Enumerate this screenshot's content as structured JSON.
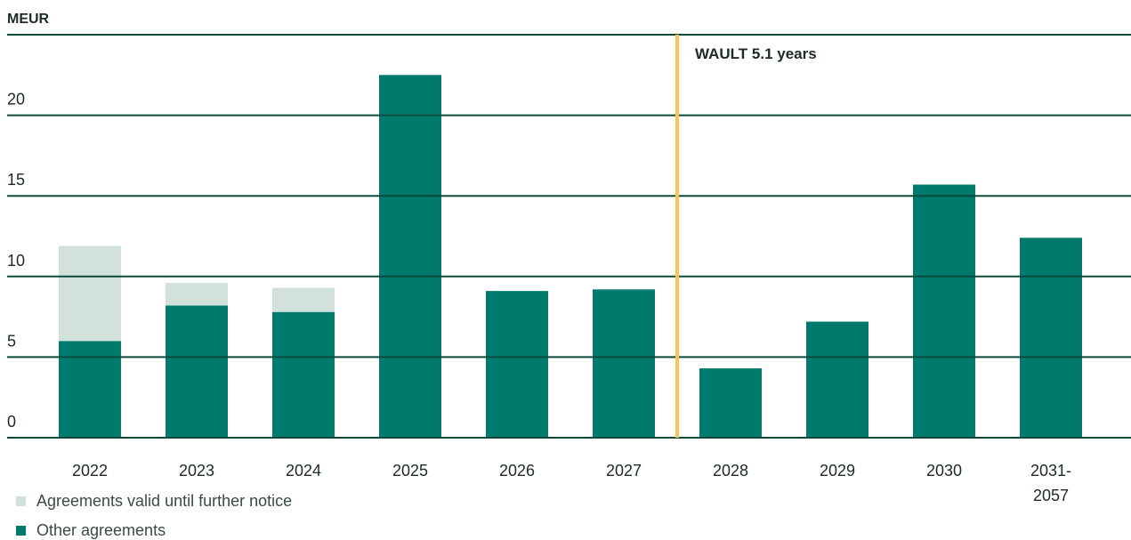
{
  "chart_data": {
    "type": "stacked_bar",
    "y_label": "MEUR",
    "categories": [
      "2022",
      "2023",
      "2024",
      "2025",
      "2026",
      "2027",
      "2028",
      "2029",
      "2030",
      "2031-\n2057"
    ],
    "series": [
      {
        "name": "Agreements valid until further notice",
        "color": "#d3e1dd",
        "values": [
          5.9,
          1.4,
          1.5,
          0,
          0,
          0,
          0,
          0,
          0,
          0
        ]
      },
      {
        "name": "Other agreements",
        "color": "#007a6c",
        "values": [
          6.0,
          8.2,
          7.8,
          22.5,
          9.1,
          9.2,
          4.3,
          7.2,
          15.7,
          12.4
        ]
      }
    ],
    "ylim": [
      0,
      25
    ],
    "yticks": [
      0,
      5,
      10,
      15,
      20
    ],
    "grid": true,
    "annotation": "WAULT 5.1 years"
  }
}
